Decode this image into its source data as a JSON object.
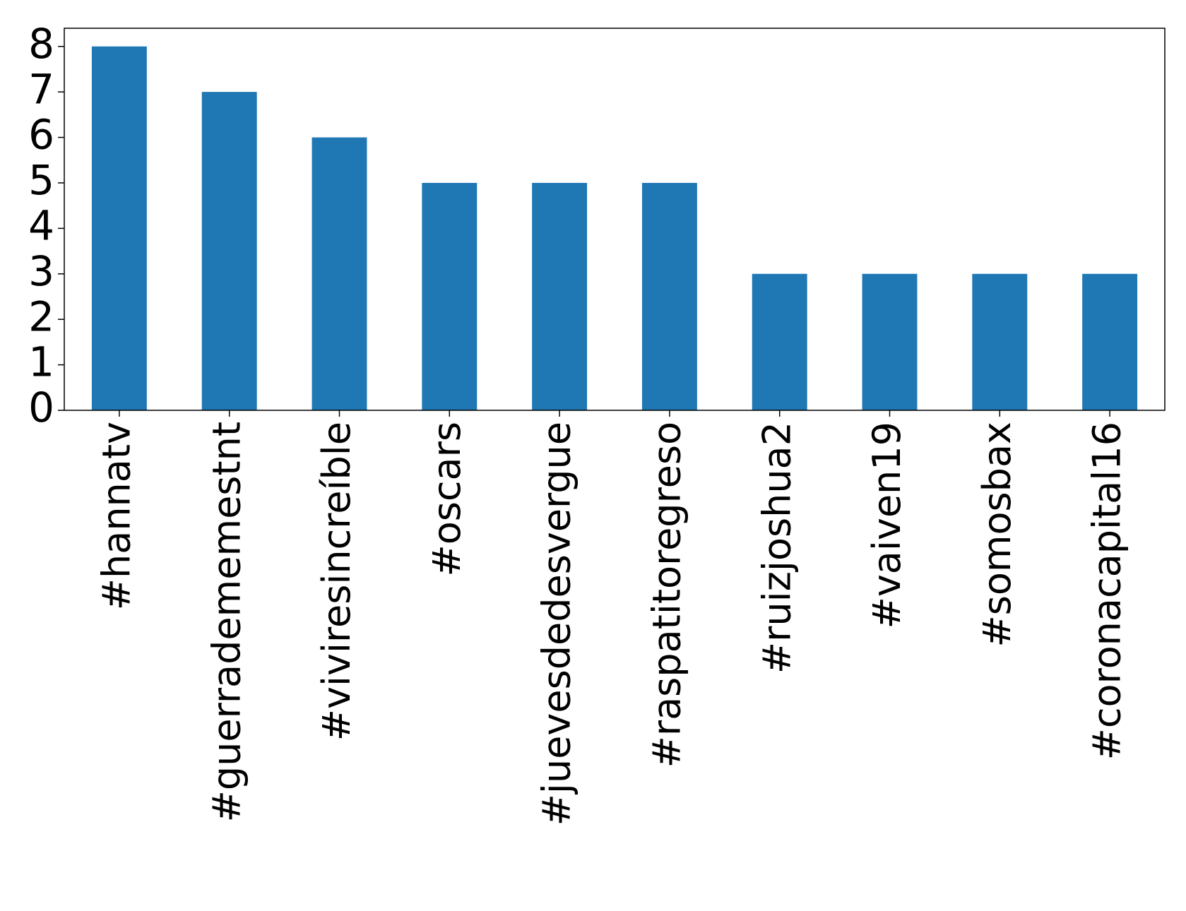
{
  "chart_data": {
    "type": "bar",
    "categories": [
      "#hannatv",
      "#guerradememestnt",
      "#viviresincreíble",
      "#oscars",
      "#juevesdedesvergue",
      "#raspatitoregreso",
      "#ruizjoshua2",
      "#vaiven19",
      "#somosbax",
      "#coronacapital16"
    ],
    "values": [
      8,
      7,
      6,
      5,
      5,
      5,
      3,
      3,
      3,
      3
    ],
    "color": "#1f77b4",
    "ylim": [
      0,
      8.4
    ],
    "yticks": [
      0,
      1,
      2,
      3,
      4,
      5,
      6,
      7,
      8
    ],
    "grid": false
  }
}
